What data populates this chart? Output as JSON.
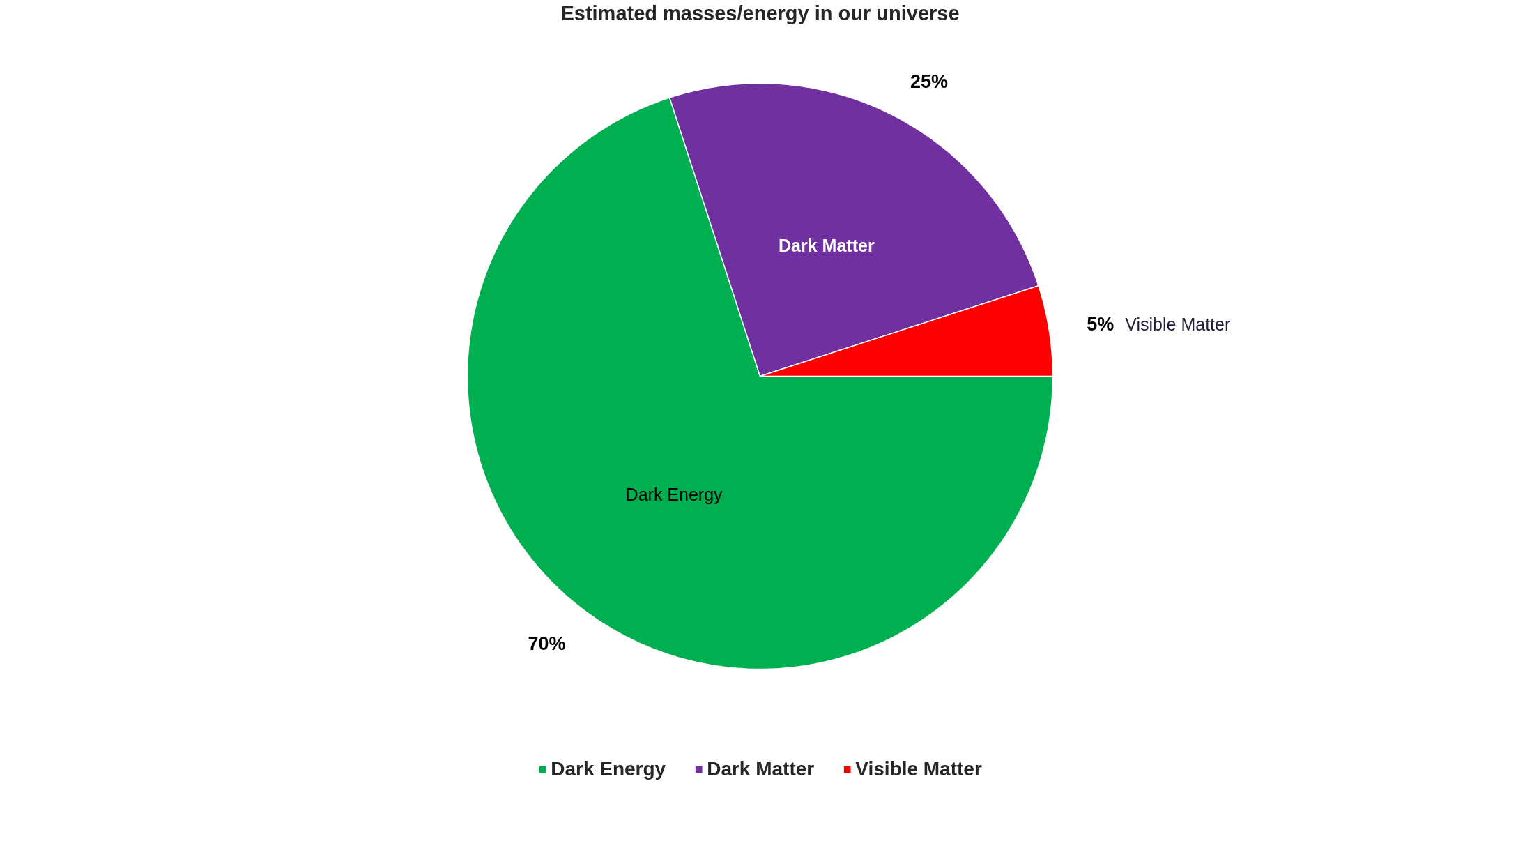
{
  "chart_data": {
    "type": "pie",
    "title": "Estimated masses/energy in our universe",
    "categories": [
      "Dark Energy",
      "Dark Matter",
      "Visible Matter"
    ],
    "values": [
      70,
      25,
      5
    ],
    "colors": [
      "#00b050",
      "#7030a0",
      "#ff0000"
    ],
    "value_labels": [
      "70%",
      "25%",
      "5%"
    ],
    "legend": "bottom"
  }
}
